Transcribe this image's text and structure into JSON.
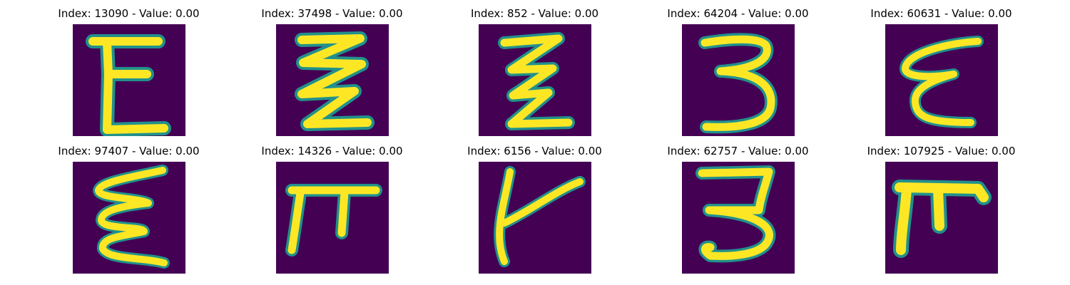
{
  "panels": [
    {
      "title": "Index: 13090 - Value: 0.00",
      "glyph": "E-shape-icon"
    },
    {
      "title": "Index: 37498 - Value: 0.00",
      "glyph": "zigzag-icon"
    },
    {
      "title": "Index: 852 - Value: 0.00",
      "glyph": "zigzag-icon"
    },
    {
      "title": "Index: 64204 - Value: 0.00",
      "glyph": "three-shape-icon"
    },
    {
      "title": "Index: 60631 - Value: 0.00",
      "glyph": "epsilon-shape-icon"
    },
    {
      "title": "Index: 97407 - Value: 0.00",
      "glyph": "epsilon-shape-icon"
    },
    {
      "title": "Index: 14326 - Value: 0.00",
      "glyph": "pi-shape-icon"
    },
    {
      "title": "Index: 6156 - Value: 0.00",
      "glyph": "k-shape-icon"
    },
    {
      "title": "Index: 62757 - Value: 0.00",
      "glyph": "three-shape-icon"
    },
    {
      "title": "Index: 107925 - Value: 0.00",
      "glyph": "pi-shape-icon"
    }
  ],
  "colors": {
    "background": "#440154",
    "stroke_edge": "#21918c",
    "stroke_core": "#fde725"
  }
}
